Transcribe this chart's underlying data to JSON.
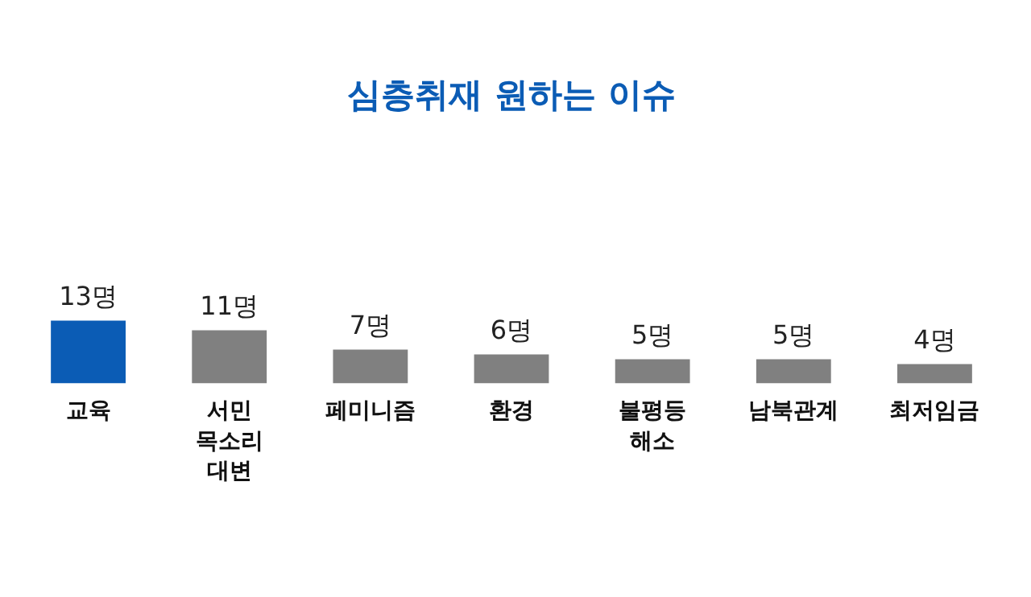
{
  "chart_data": {
    "type": "bar",
    "title": "심층취재 원하는 이슈",
    "categories": [
      "교육",
      "서민 목소리 대변",
      "페미니즘",
      "환경",
      "불평등 해소",
      "남북관계",
      "최저임금"
    ],
    "values": [
      13,
      11,
      7,
      6,
      5,
      5,
      4
    ],
    "value_labels": [
      "13명",
      "11명",
      "7명",
      "6명",
      "5명",
      "5명",
      "4명"
    ],
    "colors": [
      "#0b5cb5",
      "#808080",
      "#808080",
      "#808080",
      "#808080",
      "#808080",
      "#808080"
    ],
    "grid": false,
    "legend": false,
    "tick_labels": "x"
  }
}
